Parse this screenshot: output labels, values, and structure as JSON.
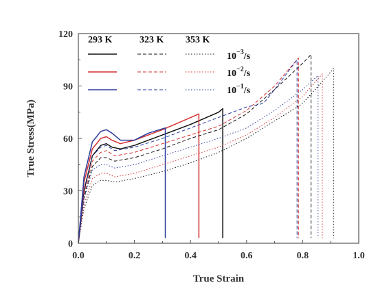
{
  "chart_data": {
    "type": "line",
    "title": "",
    "xlabel": "True Strain",
    "ylabel": "True Stress(MPa)",
    "xlim": [
      0,
      1.0
    ],
    "ylim": [
      0,
      120
    ],
    "xticks": [
      "0.0",
      "0.2",
      "0.4",
      "0.6",
      "0.8",
      "1.0"
    ],
    "yticks": [
      "0",
      "30",
      "60",
      "90",
      "120"
    ],
    "grid": false,
    "legend": {
      "placement": "top-left",
      "temperatures": [
        "293 K",
        "323 K",
        "353 K"
      ],
      "rates": [
        {
          "base": "10",
          "exp": "−3",
          "unit": "/s"
        },
        {
          "base": "10",
          "exp": "−2",
          "unit": "/s"
        },
        {
          "base": "10",
          "exp": "−1",
          "unit": "/s"
        }
      ]
    },
    "colors": {
      "rate_1e-3": "#111111",
      "rate_1e-2": "#d42f2f",
      "rate_1e-1": "#2a3a9c"
    },
    "series": [
      {
        "temperature": "293 K",
        "rate": "10^-3/s",
        "x": [
          0,
          0.02,
          0.05,
          0.08,
          0.1,
          0.12,
          0.15,
          0.2,
          0.3,
          0.4,
          0.5,
          0.515,
          0.515
        ],
        "y": [
          0,
          30,
          50,
          56,
          57,
          55,
          54,
          56,
          62,
          68,
          75,
          77,
          3
        ]
      },
      {
        "temperature": "293 K",
        "rate": "10^-2/s",
        "x": [
          0,
          0.02,
          0.05,
          0.08,
          0.1,
          0.12,
          0.15,
          0.2,
          0.3,
          0.43,
          0.43
        ],
        "y": [
          0,
          35,
          54,
          60,
          61,
          59,
          57,
          59,
          65,
          74,
          3
        ]
      },
      {
        "temperature": "293 K",
        "rate": "10^-1/s",
        "x": [
          0,
          0.02,
          0.05,
          0.08,
          0.1,
          0.12,
          0.15,
          0.2,
          0.25,
          0.31,
          0.31
        ],
        "y": [
          0,
          38,
          58,
          64,
          65,
          63,
          59,
          59,
          63,
          66,
          3
        ]
      },
      {
        "temperature": "323 K",
        "rate": "10^-3/s",
        "x": [
          0,
          0.02,
          0.05,
          0.08,
          0.1,
          0.13,
          0.2,
          0.3,
          0.4,
          0.5,
          0.6,
          0.7,
          0.8,
          0.83,
          0.83
        ],
        "y": [
          0,
          26,
          44,
          49,
          49,
          47,
          49,
          54,
          60,
          65,
          74,
          88,
          103,
          108,
          3
        ]
      },
      {
        "temperature": "323 K",
        "rate": "10^-2/s",
        "x": [
          0,
          0.02,
          0.05,
          0.08,
          0.1,
          0.13,
          0.2,
          0.3,
          0.4,
          0.5,
          0.6,
          0.7,
          0.785,
          0.785
        ],
        "y": [
          0,
          28,
          47,
          52,
          53,
          50,
          52,
          57,
          62,
          67,
          76,
          90,
          106,
          3
        ]
      },
      {
        "temperature": "323 K",
        "rate": "10^-1/s",
        "x": [
          0,
          0.02,
          0.05,
          0.08,
          0.1,
          0.13,
          0.2,
          0.3,
          0.4,
          0.5,
          0.6,
          0.66,
          0.7,
          0.78,
          0.78
        ],
        "y": [
          0,
          30,
          50,
          55,
          56,
          53,
          55,
          60,
          66,
          72,
          78,
          80,
          88,
          105,
          3
        ]
      },
      {
        "temperature": "353 K",
        "rate": "10^-3/s",
        "x": [
          0,
          0.02,
          0.05,
          0.08,
          0.1,
          0.13,
          0.2,
          0.3,
          0.4,
          0.5,
          0.6,
          0.7,
          0.8,
          0.9,
          0.91,
          0.91
        ],
        "y": [
          0,
          20,
          33,
          36,
          36,
          35,
          37,
          41,
          46,
          52,
          60,
          70,
          80,
          98,
          100,
          3
        ]
      },
      {
        "temperature": "353 K",
        "rate": "10^-2/s",
        "x": [
          0,
          0.02,
          0.05,
          0.08,
          0.1,
          0.13,
          0.2,
          0.3,
          0.4,
          0.5,
          0.6,
          0.7,
          0.8,
          0.87,
          0.87
        ],
        "y": [
          0,
          22,
          37,
          40,
          40,
          38,
          40,
          45,
          50,
          55,
          62,
          72,
          84,
          97,
          3
        ]
      },
      {
        "temperature": "353 K",
        "rate": "10^-1/s",
        "x": [
          0,
          0.02,
          0.05,
          0.08,
          0.1,
          0.13,
          0.2,
          0.3,
          0.4,
          0.5,
          0.6,
          0.7,
          0.8,
          0.855,
          0.855
        ],
        "y": [
          0,
          25,
          42,
          45,
          45,
          43,
          45,
          50,
          55,
          60,
          66,
          76,
          88,
          96,
          3
        ]
      }
    ]
  }
}
